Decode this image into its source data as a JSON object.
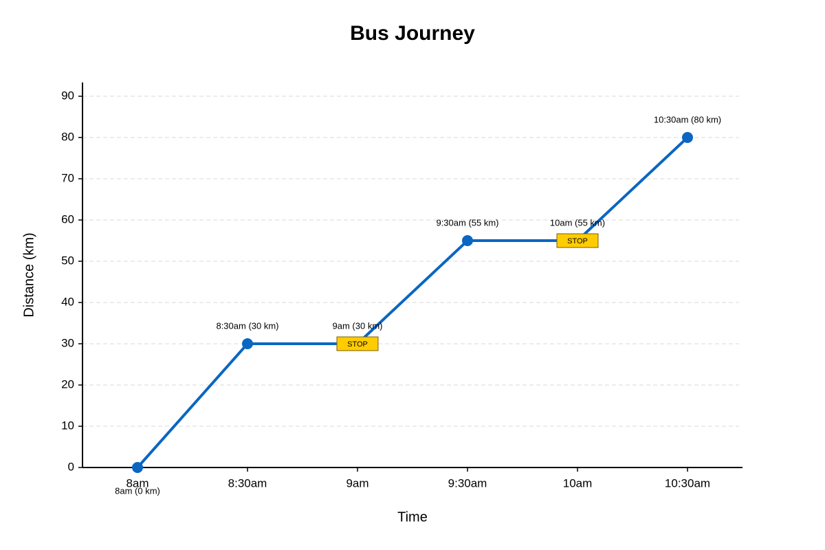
{
  "chart_data": {
    "type": "line",
    "title": "Bus Journey",
    "x_label": "Time",
    "y_label": "Distance (km)",
    "categories": [
      "8am",
      "8:30am",
      "9am",
      "9:30am",
      "10am",
      "10:30am"
    ],
    "values": [
      0,
      30,
      30,
      55,
      55,
      80
    ],
    "value_labels": [
      "8am (0 km)",
      "8:30am (30 km)",
      "9am (30 km)",
      "9:30am (55 km)",
      "10am (55 km)",
      "10:30am (80 km)"
    ],
    "annotations": [
      {
        "category": "9am",
        "text": "STOP"
      },
      {
        "category": "10am",
        "text": "STOP"
      }
    ],
    "color": "#0a66c2",
    "annotation_color": "#ffcc00",
    "ylim": [
      0,
      93
    ],
    "yticks": [
      0,
      10,
      20,
      30,
      40,
      50,
      60,
      70,
      80,
      90
    ],
    "grid": true
  }
}
